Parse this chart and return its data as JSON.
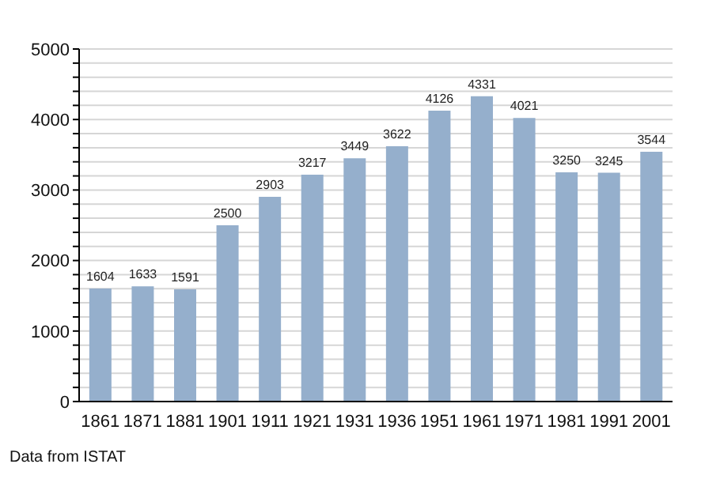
{
  "chart_data": {
    "type": "bar",
    "categories": [
      "1861",
      "1871",
      "1881",
      "1901",
      "1911",
      "1921",
      "1931",
      "1936",
      "1951",
      "1961",
      "1971",
      "1981",
      "1991",
      "2001"
    ],
    "values": [
      1604,
      1633,
      1591,
      2500,
      2903,
      3217,
      3449,
      3622,
      4126,
      4331,
      4021,
      3250,
      3245,
      3544
    ],
    "color": "#95afcc",
    "ylim": [
      0,
      5000
    ],
    "yticks": [
      0,
      {
        "value": 200,
        "label": null
      },
      {
        "value": 400,
        "label": null
      },
      {
        "value": 600,
        "label": null
      },
      {
        "value": 800,
        "label": null
      },
      1000,
      {
        "value": 1200,
        "label": null
      },
      {
        "value": 1400,
        "label": null
      },
      {
        "value": 1600,
        "label": null
      },
      {
        "value": 1800,
        "label": null
      },
      2000,
      {
        "value": 2200,
        "label": null
      },
      {
        "value": 2400,
        "label": null
      },
      {
        "value": 2600,
        "label": null
      },
      {
        "value": 2800,
        "label": null
      },
      3000,
      {
        "value": 3200,
        "label": null
      },
      {
        "value": 3400,
        "label": null
      },
      {
        "value": 3600,
        "label": null
      },
      {
        "value": 3800,
        "label": null
      },
      4000,
      {
        "value": 4200,
        "label": null
      },
      {
        "value": 4400,
        "label": null
      },
      {
        "value": 4600,
        "label": null
      },
      {
        "value": 4800,
        "label": null
      },
      5000
    ],
    "grid": "y",
    "data_labels": true,
    "annotations": [
      "Data from ISTAT"
    ]
  }
}
